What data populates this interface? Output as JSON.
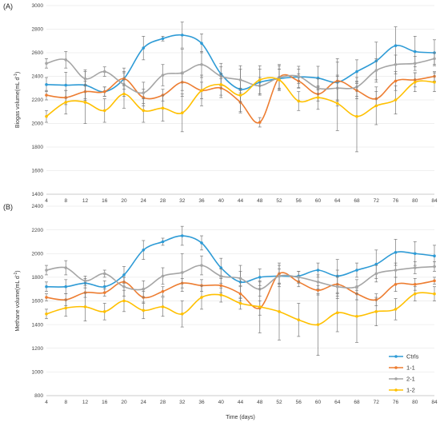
{
  "colors": {
    "Ctrls": "#2e9bd6",
    "1-1": "#ed7d31",
    "2-1": "#a5a5a5",
    "1-2": "#ffc000"
  },
  "chart_data": [
    {
      "type": "line",
      "panel_label": "(A)",
      "ylabel": "Biogas volume(mL d",
      "ylabel_sup": "-1",
      "ylabel_close": ")",
      "xlabel": "",
      "xlim": [
        4,
        84
      ],
      "ylim": [
        1400,
        3000
      ],
      "yticks": [
        1400,
        1600,
        1800,
        2000,
        2200,
        2400,
        2600,
        2800,
        3000
      ],
      "x": [
        4,
        8,
        12,
        16,
        20,
        24,
        28,
        32,
        36,
        40,
        44,
        48,
        52,
        56,
        60,
        64,
        68,
        72,
        76,
        80,
        84
      ],
      "series": [
        {
          "name": "Ctrls",
          "values": [
            2330,
            2325,
            2325,
            2270,
            2380,
            2640,
            2720,
            2750,
            2680,
            2420,
            2290,
            2350,
            2380,
            2395,
            2385,
            2350,
            2440,
            2530,
            2660,
            2610,
            2600
          ],
          "errors": [
            60,
            110,
            130,
            40,
            90,
            100,
            20,
            110,
            80,
            90,
            200,
            110,
            80,
            90,
            100,
            200,
            100,
            160,
            160,
            130,
            110
          ]
        },
        {
          "name": "1-1",
          "values": [
            2240,
            2220,
            2270,
            2270,
            2380,
            2220,
            2240,
            2350,
            2280,
            2300,
            2180,
            2010,
            2390,
            2360,
            2250,
            2360,
            2280,
            2210,
            2360,
            2370,
            2400
          ],
          "errors": [
            40,
            60,
            60,
            40,
            60,
            70,
            50,
            70,
            70,
            80,
            80,
            40,
            100,
            60,
            60,
            160,
            70,
            60,
            80,
            60,
            40
          ]
        },
        {
          "name": "2-1",
          "values": [
            2510,
            2540,
            2380,
            2440,
            2330,
            2260,
            2410,
            2430,
            2500,
            2400,
            2370,
            2320,
            2390,
            2400,
            2300,
            2300,
            2310,
            2450,
            2500,
            2510,
            2550
          ],
          "errors": [
            40,
            70,
            60,
            40,
            100,
            90,
            90,
            200,
            110,
            80,
            90,
            70,
            110,
            60,
            80,
            110,
            80,
            100,
            80,
            60,
            50
          ]
        },
        {
          "name": "1-2",
          "values": [
            2060,
            2180,
            2180,
            2110,
            2250,
            2110,
            2130,
            2090,
            2280,
            2330,
            2240,
            2370,
            2370,
            2190,
            2220,
            2170,
            2060,
            2150,
            2200,
            2350,
            2350
          ],
          "errors": [
            50,
            100,
            180,
            100,
            120,
            100,
            110,
            160,
            130,
            90,
            60,
            120,
            90,
            80,
            100,
            230,
            300,
            160,
            120,
            80,
            80
          ]
        }
      ]
    },
    {
      "type": "line",
      "panel_label": "(B)",
      "ylabel": "Methane volume(mL d",
      "ylabel_sup": "-1",
      "ylabel_close": ")",
      "xlabel": "Time (days)",
      "xlim": [
        4,
        84
      ],
      "ylim": [
        800,
        2400
      ],
      "yticks": [
        800,
        1000,
        1200,
        1400,
        1600,
        1800,
        2000,
        2200,
        2400
      ],
      "x": [
        4,
        8,
        12,
        16,
        20,
        24,
        28,
        32,
        36,
        40,
        44,
        48,
        52,
        56,
        60,
        64,
        68,
        72,
        76,
        80,
        84
      ],
      "legend": "bottom-right",
      "series": [
        {
          "name": "Ctrls",
          "values": [
            1720,
            1720,
            1750,
            1720,
            1820,
            2030,
            2100,
            2150,
            2090,
            1880,
            1760,
            1800,
            1810,
            1810,
            1860,
            1810,
            1860,
            1910,
            2010,
            2000,
            1980
          ],
          "errors": [
            40,
            60,
            40,
            50,
            70,
            80,
            30,
            80,
            60,
            80,
            140,
            70,
            60,
            40,
            60,
            140,
            60,
            120,
            110,
            100,
            90
          ]
        },
        {
          "name": "1-1",
          "values": [
            1630,
            1610,
            1670,
            1670,
            1760,
            1630,
            1680,
            1750,
            1730,
            1730,
            1660,
            1540,
            1830,
            1760,
            1690,
            1740,
            1660,
            1610,
            1740,
            1740,
            1770
          ],
          "errors": [
            30,
            50,
            40,
            30,
            40,
            50,
            40,
            40,
            50,
            60,
            60,
            60,
            90,
            40,
            40,
            120,
            50,
            50,
            60,
            50,
            30
          ]
        },
        {
          "name": "2-1",
          "values": [
            1860,
            1880,
            1770,
            1830,
            1720,
            1700,
            1810,
            1840,
            1900,
            1810,
            1790,
            1700,
            1810,
            1800,
            1760,
            1720,
            1720,
            1830,
            1860,
            1880,
            1890
          ],
          "errors": [
            40,
            60,
            40,
            30,
            80,
            70,
            70,
            160,
            80,
            60,
            60,
            60,
            90,
            50,
            60,
            80,
            60,
            70,
            60,
            50,
            40
          ]
        },
        {
          "name": "1-2",
          "values": [
            1490,
            1540,
            1550,
            1510,
            1600,
            1520,
            1550,
            1490,
            1630,
            1650,
            1580,
            1550,
            1510,
            1440,
            1400,
            1500,
            1470,
            1510,
            1530,
            1660,
            1660
          ],
          "errors": [
            40,
            70,
            120,
            70,
            90,
            70,
            80,
            110,
            100,
            60,
            50,
            220,
            240,
            140,
            260,
            160,
            220,
            120,
            90,
            60,
            60
          ]
        }
      ]
    }
  ]
}
